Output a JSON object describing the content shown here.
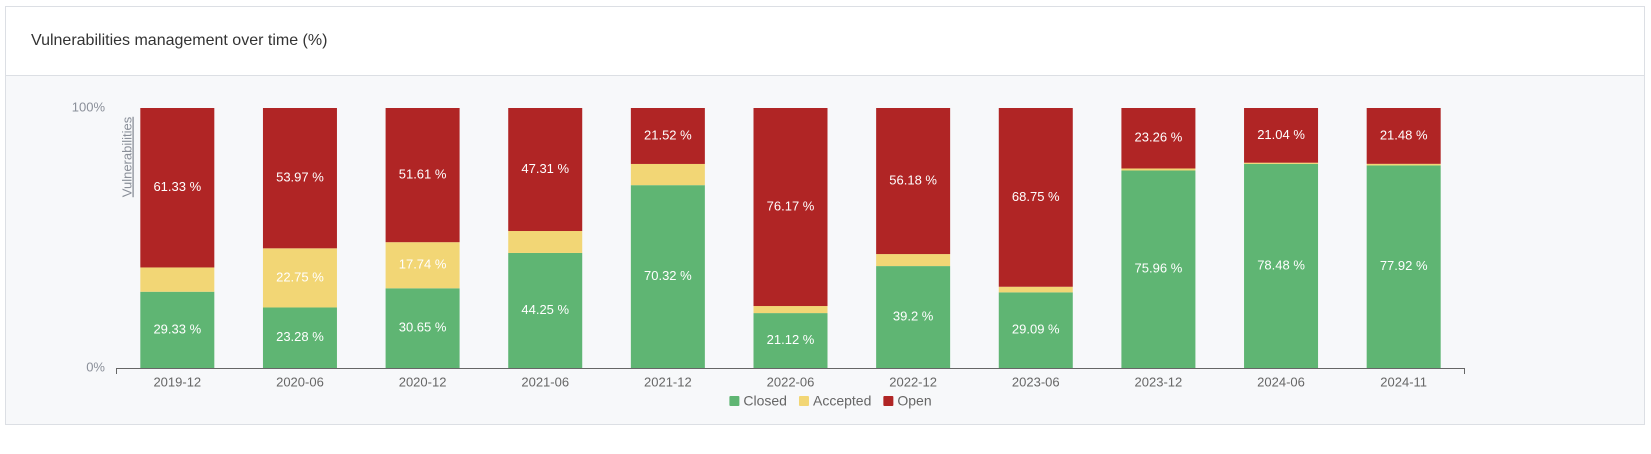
{
  "chart_data": {
    "type": "stacked_bar",
    "title": "Vulnerabilities management over time (%)",
    "y_label": "Vulnerabilities",
    "categories": [
      "2019-12",
      "2020-06",
      "2020-12",
      "2021-06",
      "2021-12",
      "2022-06",
      "2022-12",
      "2023-06",
      "2023-12",
      "2024-06",
      "2024-11"
    ],
    "series": [
      {
        "name": "Closed",
        "color": "#5fb573",
        "values": [
          29.33,
          23.28,
          30.65,
          44.25,
          70.32,
          21.12,
          39.2,
          29.09,
          75.96,
          78.48,
          77.92
        ],
        "value_labels": [
          "29.33 %",
          "23.28 %",
          "30.65 %",
          "44.25 %",
          "70.32 %",
          "21.12 %",
          "39.2 %",
          "29.09 %",
          "75.96 %",
          "78.48 %",
          "77.92 %"
        ]
      },
      {
        "name": "Accepted",
        "color": "#f2d675",
        "values": [
          9.34,
          22.75,
          17.74,
          8.44,
          8.16,
          2.71,
          4.62,
          2.16,
          0.78,
          0.48,
          0.6
        ],
        "value_labels": [
          null,
          "22.75 %",
          "17.74 %",
          null,
          null,
          null,
          null,
          null,
          null,
          null,
          null
        ]
      },
      {
        "name": "Open",
        "color": "#b02525",
        "values": [
          61.33,
          53.97,
          51.61,
          47.31,
          21.52,
          76.17,
          56.18,
          68.75,
          23.26,
          21.04,
          21.48
        ],
        "value_labels": [
          "61.33 %",
          "53.97 %",
          "51.61 %",
          "47.31 %",
          "21.52 %",
          "76.17 %",
          "56.18 %",
          "68.75 %",
          "23.26 %",
          "21.04 %",
          "21.48 %"
        ]
      }
    ],
    "ylim": [
      0,
      100
    ],
    "yticks": [
      {
        "value": 0,
        "label": "0%"
      },
      {
        "value": 100,
        "label": "100%"
      }
    ],
    "legend": "bottom"
  }
}
